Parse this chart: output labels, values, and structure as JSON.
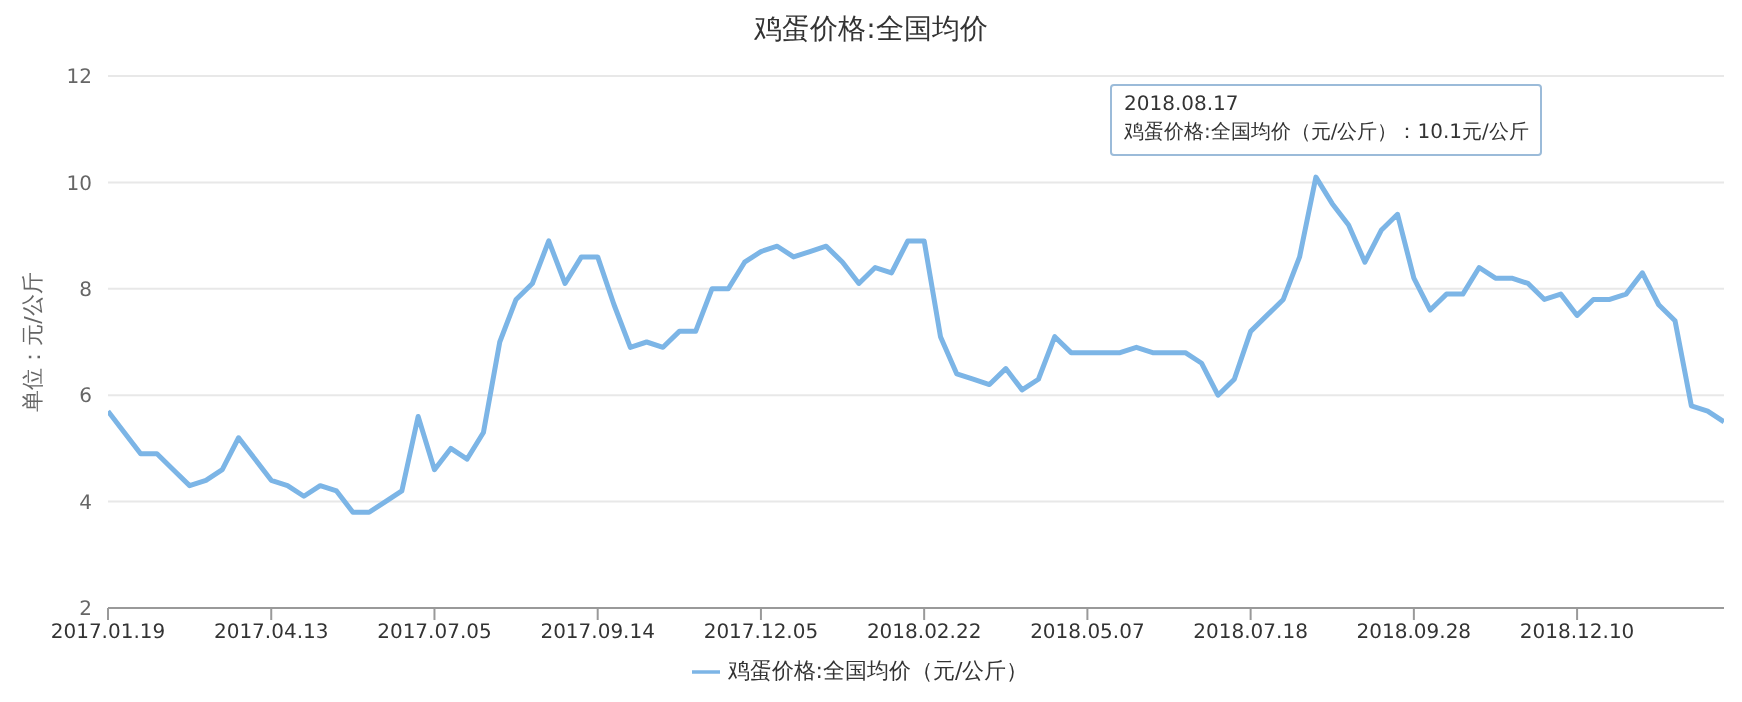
{
  "chart_data": {
    "type": "line",
    "title": "鸡蛋价格:全国均价",
    "ylabel": "单位：元/公斤",
    "categories": [
      "2017.01.19",
      null,
      null,
      null,
      null,
      null,
      null,
      null,
      null,
      null,
      "2017.04.13",
      null,
      null,
      null,
      null,
      null,
      null,
      null,
      null,
      null,
      "2017.07.05",
      null,
      null,
      null,
      null,
      null,
      null,
      null,
      null,
      null,
      "2017.09.14",
      null,
      null,
      null,
      null,
      null,
      null,
      null,
      null,
      null,
      "2017.12.05",
      null,
      null,
      null,
      null,
      null,
      null,
      null,
      null,
      null,
      "2018.02.22",
      null,
      null,
      null,
      null,
      null,
      null,
      null,
      null,
      null,
      "2018.05.07",
      null,
      null,
      null,
      null,
      null,
      null,
      null,
      null,
      null,
      "2018.07.18",
      null,
      null,
      null,
      null,
      null,
      null,
      null,
      null,
      null,
      "2018.09.28",
      null,
      null,
      null,
      null,
      null,
      null,
      null,
      null,
      null,
      "2018.12.10",
      null,
      null,
      null,
      null,
      null,
      null,
      null,
      null,
      null
    ],
    "series": [
      {
        "name": "鸡蛋价格:全国均价（元/公斤）",
        "color": "#7cb5e6",
        "values": [
          5.7,
          5.3,
          4.9,
          4.9,
          4.6,
          4.3,
          4.4,
          4.6,
          5.2,
          4.8,
          4.4,
          4.3,
          4.1,
          4.3,
          4.2,
          3.8,
          3.8,
          4.0,
          4.2,
          5.6,
          4.6,
          5.0,
          4.8,
          5.3,
          7.0,
          7.8,
          8.1,
          8.9,
          8.1,
          8.6,
          8.6,
          7.7,
          6.9,
          7.0,
          6.9,
          7.2,
          7.2,
          8.0,
          8.0,
          8.5,
          8.7,
          8.8,
          8.6,
          8.7,
          8.8,
          8.5,
          8.1,
          8.4,
          8.3,
          8.9,
          8.9,
          7.1,
          6.4,
          6.3,
          6.2,
          6.5,
          6.1,
          6.3,
          7.1,
          6.8,
          6.8,
          6.8,
          6.8,
          6.9,
          6.8,
          6.8,
          6.8,
          6.6,
          6.0,
          6.3,
          7.2,
          7.5,
          7.8,
          8.6,
          10.1,
          9.6,
          9.2,
          8.5,
          9.1,
          9.4,
          8.2,
          7.6,
          7.9,
          7.9,
          8.4,
          8.2,
          8.2,
          8.1,
          7.8,
          7.9,
          7.5,
          7.8,
          7.8,
          7.9,
          8.3,
          7.7,
          7.4,
          5.8,
          5.7,
          5.5
        ]
      }
    ],
    "ylim": [
      2,
      12
    ],
    "yticks": [
      2,
      4,
      6,
      8,
      10,
      12
    ],
    "grid": "y",
    "legend": "bottom",
    "marker": "none",
    "line_style": "solid",
    "annotations": [
      "2018.08.17",
      "鸡蛋价格:全国均价（元/公斤）：10.1元/公斤"
    ]
  }
}
